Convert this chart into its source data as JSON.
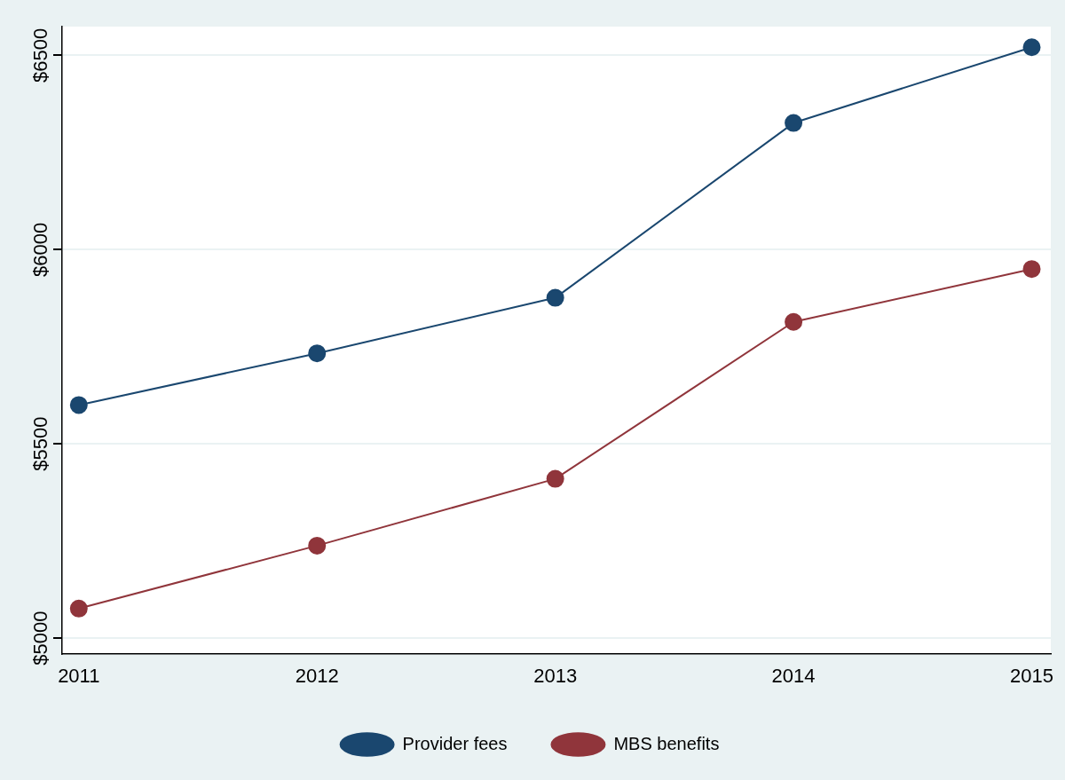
{
  "chart_data": {
    "type": "line",
    "x": [
      2011,
      2012,
      2013,
      2014,
      2015
    ],
    "series": [
      {
        "name": "Provider fees",
        "color": "#1a476f",
        "values": [
          5600,
          5733,
          5876,
          6326,
          6521
        ]
      },
      {
        "name": "MBS benefits",
        "color": "#90353b",
        "values": [
          5076,
          5238,
          5410,
          5814,
          5950
        ]
      }
    ],
    "xlim": [
      2010.93,
      2015.08
    ],
    "xticks": [
      2011,
      2012,
      2013,
      2014,
      2015
    ],
    "ylim": [
      4960,
      6574
    ],
    "yticks": [
      {
        "value": 5000,
        "label": "$5000"
      },
      {
        "value": 5500,
        "label": "$5500"
      },
      {
        "value": 6000,
        "label": "$6000"
      },
      {
        "value": 6500,
        "label": "$6500"
      }
    ],
    "grid": "y",
    "legend": "bottom",
    "marker": "circle",
    "line_style": "solid"
  }
}
